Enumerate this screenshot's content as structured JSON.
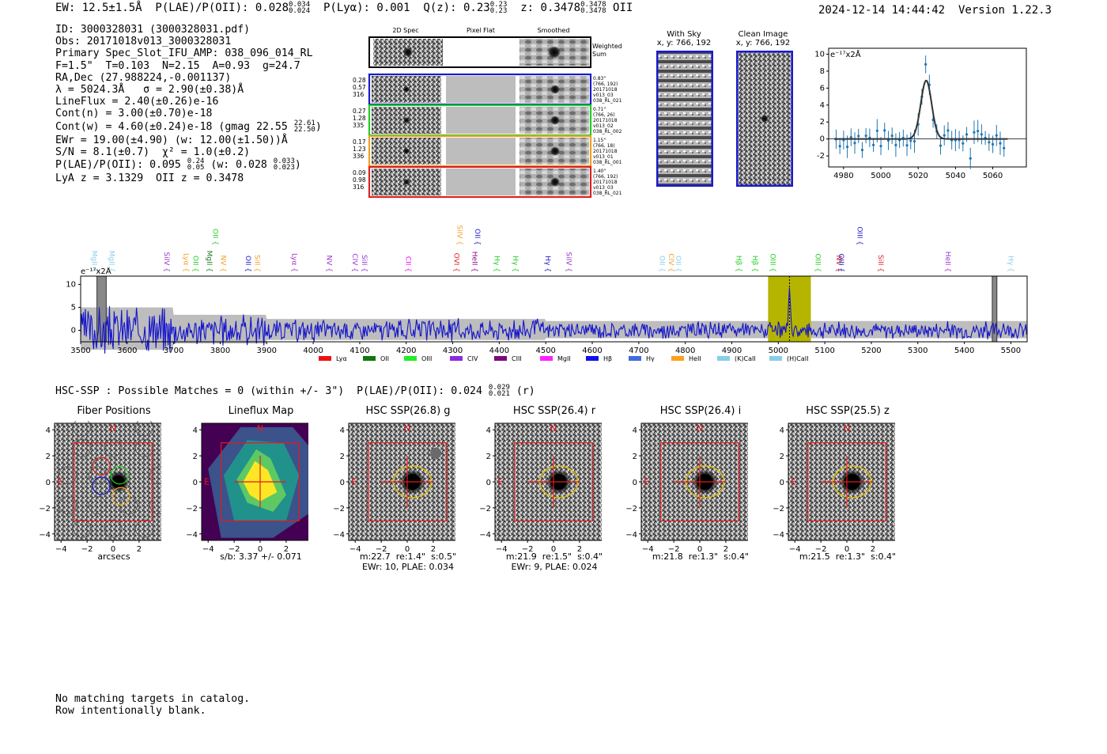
{
  "header": {
    "stats": "EW: 12.5±1.5Å  P(LAE)/P(OII): 0.028",
    "plae_hi": "0.034",
    "plae_lo": "0.024",
    "plya": "  P(Lyα): 0.001  Q(z): 0.23",
    "qz_hi": "0.23",
    "qz_lo": "0.23",
    "z": "  z: 0.3478",
    "z_hi": "0.3478",
    "z_lo": "0.3478",
    "z_line": " OII",
    "datetime": "2024-12-14 14:44:42",
    "version": "Version 1.22.3"
  },
  "info": {
    "id": "ID: 3000328031 (3000328031.pdf)",
    "obs": "Obs: 20171018v013_3000328031",
    "slot": "Primary Spec_Slot_IFU_AMP: 038_096_014_RL",
    "params": "F=1.5\"  T=0.103  N=2.15  A=0.93  g=24.7",
    "radec": "RA,Dec (27.988224,-0.001137)",
    "lambda": "λ = 5024.3Å   σ = 2.90(±0.38)Å",
    "lineflux": "LineFlux = 2.40(±0.26)e-16",
    "contn": "Cont(n) = 3.00(±0.70)e-18",
    "contw": "Cont(w) = 4.60(±0.24)e-18 (gmag 22.55",
    "gmag_hi": "22.61",
    "gmag_lo": "22.50",
    "contw_end": ")",
    "ewr": "EWr = 19.00(±4.90) (w: 12.00(±1.50))Å",
    "sn": "S/N = 8.1(±0.7)  χ² = 1.0(±0.2)",
    "plae": "P(LAE)/P(OII): 0.095",
    "plae_hi": "0.24",
    "plae_lo": "0.05",
    "plae_w": " (w: 0.028",
    "plaew_hi": "0.033",
    "plaew_lo": "0.023",
    "plae_end": ")",
    "lyaz": "LyA z = 3.1329  OII z = 0.3478"
  },
  "cutouts": {
    "col_2d": "2D Spec",
    "col_flat": "Pixel Flat",
    "col_smooth": "Smoothed",
    "weighted": "Weighted\nSum",
    "rows": [
      {
        "left": "0.28\n0.57\n316",
        "right": "0.83\"\n(766, 192)\n20171018\nv013_03\n038_RL_021",
        "color": "#1a1acc"
      },
      {
        "left": "0.27\n1.28\n335",
        "right": "0.71\"\n(766, 26)\n20171018\nv013_02\n038_RL_002",
        "color": "#22cc22"
      },
      {
        "left": "0.17\n1.23\n336",
        "right": "1.15\"\n(766, 18)\n20171018\nv013_01\n038_RL_001",
        "color": "#f0a020"
      },
      {
        "left": "0.09\n0.98\n316",
        "right": "1.40\"\n(766, 192)\n20171018\nv013_03\n038_RL_021",
        "color": "#dd2020"
      }
    ]
  },
  "sky": {
    "with_sky": "With Sky",
    "with_sky_xy": "x, y: 766, 192",
    "clean": "Clean Image",
    "clean_xy": "x, y: 766, 192"
  },
  "zoom_chart": {
    "ylabel": "e⁻¹⁷x2Å",
    "yticks": [
      "10",
      "8",
      "6",
      "4",
      "2",
      "0",
      "-2"
    ],
    "xticks": [
      "4980",
      "5000",
      "5020",
      "5040",
      "5060"
    ]
  },
  "spectrum": {
    "ylabel": "e⁻¹⁷x2Å",
    "yticks": [
      "10",
      "5",
      "0"
    ],
    "xticks": [
      "3500",
      "3600",
      "3700",
      "3800",
      "3900",
      "4000",
      "4100",
      "4200",
      "4300",
      "4400",
      "4500",
      "4600",
      "4700",
      "4800",
      "4900",
      "5000",
      "5100",
      "5200",
      "5300",
      "5400",
      "5500"
    ],
    "lines": [
      {
        "label": "MgII",
        "color": "#87ceeb",
        "wave": 3525
      },
      {
        "label": "MgII",
        "color": "#87ceeb",
        "wave": 3562
      },
      {
        "label": "SiIV",
        "color": "#9932cc",
        "wave": 3680
      },
      {
        "label": "Lyα",
        "color": "#f0a020",
        "wave": 3722
      },
      {
        "label": "OII",
        "color": "#22cc22",
        "wave": 3742
      },
      {
        "label": "MgII",
        "color": "#1a7a1a",
        "wave": 3772
      },
      {
        "label": "OII",
        "color": "#22cc22",
        "wave": 3785
      },
      {
        "label": "NV",
        "color": "#f0a020",
        "wave": 3802
      },
      {
        "label": "OII",
        "color": "#1a1acc",
        "wave": 3855
      },
      {
        "label": "SiII",
        "color": "#f0a020",
        "wave": 3875
      },
      {
        "label": "Lyα",
        "color": "#9932cc",
        "wave": 3955
      },
      {
        "label": "NV",
        "color": "#9932cc",
        "wave": 4030
      },
      {
        "label": "CIV",
        "color": "#9932cc",
        "wave": 4085
      },
      {
        "label": "SiII",
        "color": "#9932cc",
        "wave": 4105
      },
      {
        "label": "CII",
        "color": "#ff00ff",
        "wave": 4200
      },
      {
        "label": "OVI",
        "color": "#dd2020",
        "wave": 4303
      },
      {
        "label": "SiIV",
        "color": "#f0a020",
        "wave": 4310
      },
      {
        "label": "HeII",
        "color": "#8b008b",
        "wave": 4342
      },
      {
        "label": "OII",
        "color": "#1a1acc",
        "wave": 4348
      },
      {
        "label": "Hγ",
        "color": "#22cc22",
        "wave": 4390
      },
      {
        "label": "Hγ",
        "color": "#22cc22",
        "wave": 4430
      },
      {
        "label": "Hγ",
        "color": "#1a1acc",
        "wave": 4500
      },
      {
        "label": "SiIV",
        "color": "#9932cc",
        "wave": 4545
      },
      {
        "label": "OII",
        "color": "#87ceeb",
        "wave": 4745
      },
      {
        "label": "CIV",
        "color": "#f0a020",
        "wave": 4765
      },
      {
        "label": "OII",
        "color": "#87ceeb",
        "wave": 4780
      },
      {
        "label": "Hβ",
        "color": "#22cc22",
        "wave": 4910
      },
      {
        "label": "Hβ",
        "color": "#22cc22",
        "wave": 4945
      },
      {
        "label": "OIII",
        "color": "#22cc22",
        "wave": 4983
      },
      {
        "label": "OIII",
        "color": "#22cc22",
        "wave": 5080
      },
      {
        "label": "NV",
        "color": "#dd2020",
        "wave": 5125
      },
      {
        "label": "OIII",
        "color": "#1a1acc",
        "wave": 5130
      },
      {
        "label": "OIII",
        "color": "#1a1acc",
        "wave": 5170
      },
      {
        "label": "SiII",
        "color": "#dd2020",
        "wave": 5215
      },
      {
        "label": "HeII",
        "color": "#9932cc",
        "wave": 5360
      },
      {
        "label": "Hγ",
        "color": "#87ceeb",
        "wave": 5495
      }
    ],
    "legend": [
      {
        "label": "Lyα",
        "color": "#ee1111"
      },
      {
        "label": "OII",
        "color": "#117711"
      },
      {
        "label": "OIII",
        "color": "#22ee22"
      },
      {
        "label": "CIV",
        "color": "#8a2be2"
      },
      {
        "label": "CIII",
        "color": "#7a0a7a"
      },
      {
        "label": "MgII",
        "color": "#ff22ff"
      },
      {
        "label": "Hβ",
        "color": "#1111ee"
      },
      {
        "label": "Hγ",
        "color": "#4169e1"
      },
      {
        "label": "HeII",
        "color": "#ffa020"
      },
      {
        "label": "(K)CaII",
        "color": "#87ceeb"
      },
      {
        "label": "(H)CaII",
        "color": "#87ceeb"
      }
    ]
  },
  "hsc": {
    "title": "HSC-SSP : Possible Matches = 0 (within +/- 3\")  P(LAE)/P(OII): 0.024",
    "plae_hi": "0.029",
    "plae_lo": "0.021",
    "band": " (r)",
    "panels": [
      {
        "title": "Fiber Positions",
        "caption": "arcsecs"
      },
      {
        "title": "Lineflux Map",
        "caption": "s/b: 3.37 +/- 0.071"
      },
      {
        "title": "HSC SSP(26.8) g",
        "caption": "m:22.7  re:1.4\"  s:0.5\"\nEWr: 10, PLAE: 0.034"
      },
      {
        "title": "HSC SSP(26.4) r",
        "caption": "m:21.9  re:1.5\"  s:0.4\"\nEWr: 9, PLAE: 0.024"
      },
      {
        "title": "HSC SSP(26.4) i",
        "caption": "m:21.8  re:1.3\"  s:0.4\""
      },
      {
        "title": "HSC SSP(25.5) z",
        "caption": "m:21.5  re:1.3\"  s:0.4\""
      }
    ],
    "yticks": [
      "4",
      "2",
      "0",
      "−2",
      "−4"
    ],
    "xticks": [
      "−4",
      "−2",
      "0",
      "2",
      "4"
    ],
    "north": "N",
    "east": "E"
  },
  "footer": {
    "line1": "No matching targets in catalog.",
    "line2": "Row intentionally blank."
  }
}
